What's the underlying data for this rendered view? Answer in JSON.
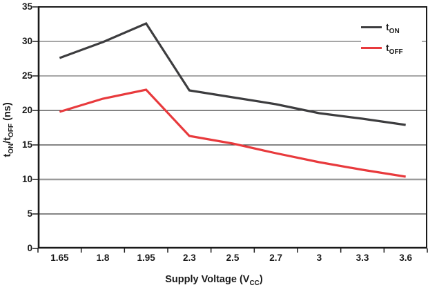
{
  "chart_data": {
    "type": "line",
    "title": "",
    "categories": [
      "1.65",
      "1.8",
      "1.95",
      "2.3",
      "2.5",
      "2.7",
      "3",
      "3.3",
      "3.6"
    ],
    "series": [
      {
        "name": "tON",
        "label_main": "t",
        "label_sub": "ON",
        "color": "#3d3d3f",
        "values": [
          27.6,
          29.9,
          32.6,
          22.9,
          21.9,
          20.9,
          19.6,
          18.8,
          17.9
        ]
      },
      {
        "name": "tOFF",
        "label_main": "t",
        "label_sub": "OFF",
        "color": "#e83a3d",
        "values": [
          19.8,
          21.7,
          23.0,
          16.3,
          15.2,
          13.8,
          12.5,
          11.4,
          10.4
        ]
      }
    ],
    "xlabel": {
      "pre": "Supply Voltage (V",
      "sub": "CC",
      "post": ")"
    },
    "ylabel": {
      "p1": "t",
      "s1": "ON",
      "p2": "/t",
      "s2": "OFF",
      "p3": " (ns)"
    },
    "ylim": [
      0,
      35
    ],
    "yticks": [
      0,
      5,
      10,
      15,
      20,
      25,
      30,
      35
    ],
    "grid": "horizontal",
    "legend_position": "top-right",
    "axis_color": "#1a1a1a",
    "gridline_colors": {
      "5": "#3a3a3a",
      "10": "#9a9a9a",
      "15": "#3a3a3a",
      "20": "#3a3a3a",
      "25": "#9a9a9a",
      "30": "#9a9a9a"
    }
  }
}
